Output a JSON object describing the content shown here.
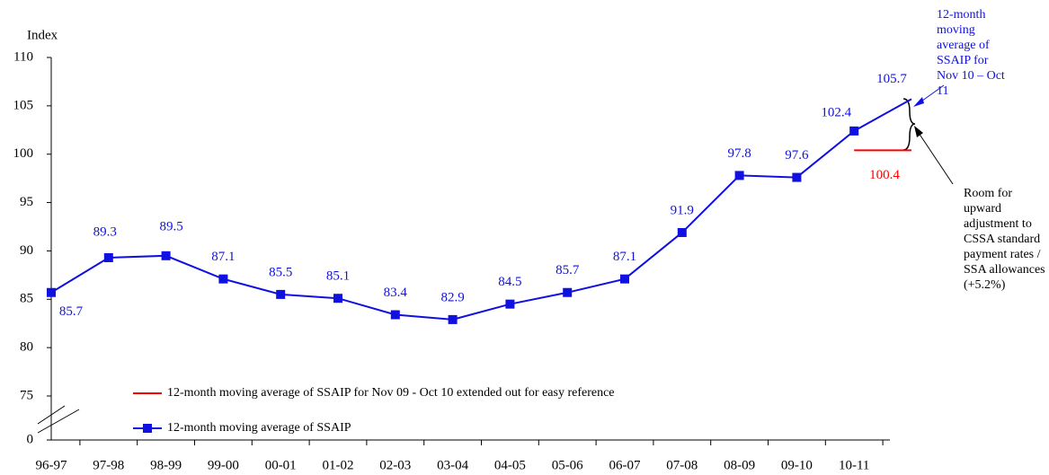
{
  "chart_data": {
    "type": "line",
    "y_label": "Index",
    "categories": [
      "96-97",
      "97-98",
      "98-99",
      "99-00",
      "00-01",
      "01-02",
      "02-03",
      "03-04",
      "04-05",
      "05-06",
      "06-07",
      "07-08",
      "08-09",
      "09-10",
      "10-11",
      null
    ],
    "series": [
      {
        "name": "12-month moving average of SSAIP for Nov 09 - Oct 10 extended out for easy reference",
        "color": "#ff0000",
        "values": [
          null,
          null,
          null,
          null,
          null,
          null,
          null,
          null,
          null,
          null,
          null,
          null,
          null,
          null,
          100.4,
          100.4
        ]
      },
      {
        "name": "12-month moving average of SSAIP",
        "color": "#1010e0",
        "values": [
          85.7,
          89.3,
          89.5,
          87.1,
          85.5,
          85.1,
          83.4,
          82.9,
          84.5,
          85.7,
          87.1,
          91.9,
          97.8,
          97.6,
          102.4,
          105.7
        ]
      }
    ],
    "ylim": [
      0,
      110
    ],
    "y_break": [
      0,
      75
    ],
    "yticks": [
      0,
      75,
      80,
      85,
      90,
      95,
      100,
      105,
      110
    ],
    "legend": "lower center",
    "annotations": [
      "12-month moving average of SSAIP for Nov 10 – Oct 11",
      "Room for upward adjustment to CSSA standard payment rates / SSA allowances (+5.2%)"
    ]
  }
}
